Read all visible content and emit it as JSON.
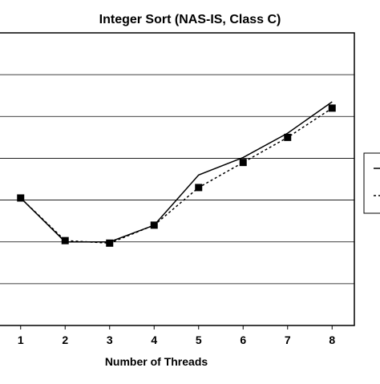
{
  "chart_data": {
    "type": "line",
    "title": "Integer Sort (NAS-IS, Class C)",
    "xlabel": "Number of Threads",
    "ylabel": "",
    "x": [
      1,
      2,
      3,
      4,
      5,
      6,
      7,
      8
    ],
    "xlim": [
      0.5,
      8.5
    ],
    "ylim": [
      0,
      7
    ],
    "grid": true,
    "legend_position": "right",
    "series": [
      {
        "name": "",
        "style": "solid",
        "color": "#000000",
        "values": [
          3.05,
          2.0,
          2.0,
          2.4,
          3.6,
          4.02,
          4.6,
          5.35
        ],
        "markers": false
      },
      {
        "name": "",
        "style": "dotted",
        "color": "#000000",
        "values": [
          3.05,
          2.03,
          1.97,
          2.4,
          3.3,
          3.9,
          4.5,
          5.2
        ],
        "markers": true
      }
    ]
  }
}
